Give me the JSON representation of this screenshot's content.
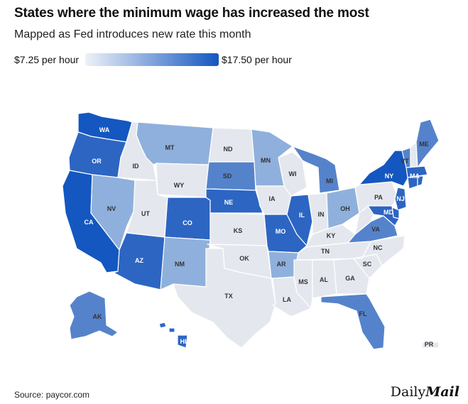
{
  "header": {
    "title": "States where the minimum wage has increased the most",
    "subtitle": "Mapped as Fed introduces new rate this month"
  },
  "legend": {
    "min_label": "$7.25 per hour",
    "max_label": "$17.50 per hour",
    "color_min": "#eef2f8",
    "color_max": "#1457c0"
  },
  "colors": {
    "base": "#e4e8ee",
    "light": "#8fb0dc",
    "mid": "#5583cb",
    "dark": "#2d65c3",
    "darkest": "#1457c0",
    "border": "#ffffff"
  },
  "map": {
    "states": [
      {
        "code": "WA",
        "level": "darkest"
      },
      {
        "code": "OR",
        "level": "dark"
      },
      {
        "code": "CA",
        "level": "darkest"
      },
      {
        "code": "ID",
        "level": "base"
      },
      {
        "code": "NV",
        "level": "light"
      },
      {
        "code": "MT",
        "level": "light"
      },
      {
        "code": "WY",
        "level": "base"
      },
      {
        "code": "UT",
        "level": "base"
      },
      {
        "code": "AZ",
        "level": "dark"
      },
      {
        "code": "CO",
        "level": "dark"
      },
      {
        "code": "NM",
        "level": "light"
      },
      {
        "code": "ND",
        "level": "base"
      },
      {
        "code": "SD",
        "level": "mid"
      },
      {
        "code": "NE",
        "level": "dark"
      },
      {
        "code": "KS",
        "level": "base"
      },
      {
        "code": "OK",
        "level": "base"
      },
      {
        "code": "TX",
        "level": "base"
      },
      {
        "code": "MN",
        "level": "light"
      },
      {
        "code": "IA",
        "level": "base"
      },
      {
        "code": "MO",
        "level": "dark"
      },
      {
        "code": "AR",
        "level": "light"
      },
      {
        "code": "LA",
        "level": "base"
      },
      {
        "code": "WI",
        "level": "base"
      },
      {
        "code": "IL",
        "level": "dark"
      },
      {
        "code": "MI",
        "level": "mid"
      },
      {
        "code": "IN",
        "level": "base"
      },
      {
        "code": "OH",
        "level": "light"
      },
      {
        "code": "KY",
        "level": "base"
      },
      {
        "code": "TN",
        "level": "base"
      },
      {
        "code": "MS",
        "level": "base"
      },
      {
        "code": "AL",
        "level": "base"
      },
      {
        "code": "GA",
        "level": "base"
      },
      {
        "code": "FL",
        "level": "mid"
      },
      {
        "code": "SC",
        "level": "base"
      },
      {
        "code": "NC",
        "level": "base"
      },
      {
        "code": "VA",
        "level": "mid"
      },
      {
        "code": "WV",
        "level": "base"
      },
      {
        "code": "PA",
        "level": "base"
      },
      {
        "code": "NY",
        "level": "darkest"
      },
      {
        "code": "VT",
        "level": "mid"
      },
      {
        "code": "NH",
        "level": "base"
      },
      {
        "code": "ME",
        "level": "mid"
      },
      {
        "code": "MA",
        "level": "dark"
      },
      {
        "code": "CT",
        "level": "dark"
      },
      {
        "code": "RI",
        "level": "dark"
      },
      {
        "code": "NJ",
        "level": "dark"
      },
      {
        "code": "DE",
        "level": "dark"
      },
      {
        "code": "MD",
        "level": "dark"
      },
      {
        "code": "AK",
        "level": "mid"
      },
      {
        "code": "HI",
        "level": "dark"
      },
      {
        "code": "PR",
        "level": "base"
      }
    ]
  },
  "footer": {
    "source": "Source: paycor.com",
    "brand_light": "Daily",
    "brand_bold": "Mail"
  }
}
